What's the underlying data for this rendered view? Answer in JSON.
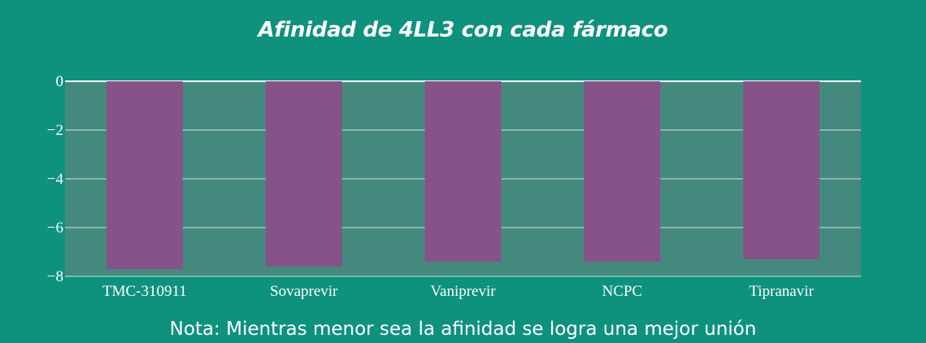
{
  "chart_data": {
    "type": "bar",
    "title": "Afinidad de 4LL3 con cada fármaco",
    "categories": [
      "TMC-310911",
      "Sovaprevir",
      "Vaniprevir",
      "NCPC",
      "Tipranavir"
    ],
    "values": [
      -7.7,
      -7.6,
      -7.4,
      -7.4,
      -7.3
    ],
    "xlabel": "",
    "ylabel": "",
    "ylim": [
      -8,
      0
    ],
    "yticks": [
      0,
      -2,
      -4,
      -6,
      -8
    ],
    "ytick_labels": [
      "0",
      "−2",
      "−4",
      "−6",
      "−8"
    ],
    "grid": true,
    "legend": "none",
    "note": "Nota: Mientras menor sea la afinidad se logra una mejor unión",
    "colors": {
      "background": "#0e927e",
      "plot_area": "#44897e",
      "bar": "#875287",
      "grid": "#ffffff",
      "text": "#ffffff"
    }
  }
}
